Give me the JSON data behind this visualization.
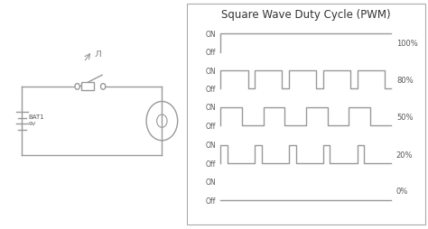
{
  "title": "Square Wave Duty Cycle (PWM)",
  "title_fontsize": 8.5,
  "bg_color": "#ffffff",
  "wave_color": "#999999",
  "label_color": "#555555",
  "pwm_rows": [
    {
      "duty": 100,
      "label": "100%",
      "on_label": "ON",
      "off_label": "Off",
      "n_cycles": 1
    },
    {
      "duty": 80,
      "label": "80%",
      "on_label": "ON",
      "off_label": "Off",
      "n_cycles": 5
    },
    {
      "duty": 50,
      "label": "50%",
      "on_label": "ON",
      "off_label": "Off",
      "n_cycles": 4
    },
    {
      "duty": 20,
      "label": "20%",
      "on_label": "ON",
      "off_label": "Off",
      "n_cycles": 5
    },
    {
      "duty": 0,
      "label": "0%",
      "on_label": "ON",
      "off_label": "Off",
      "n_cycles": 1
    }
  ],
  "circuit": {
    "battery_label": "BAT1",
    "battery_voltage": "9V"
  }
}
